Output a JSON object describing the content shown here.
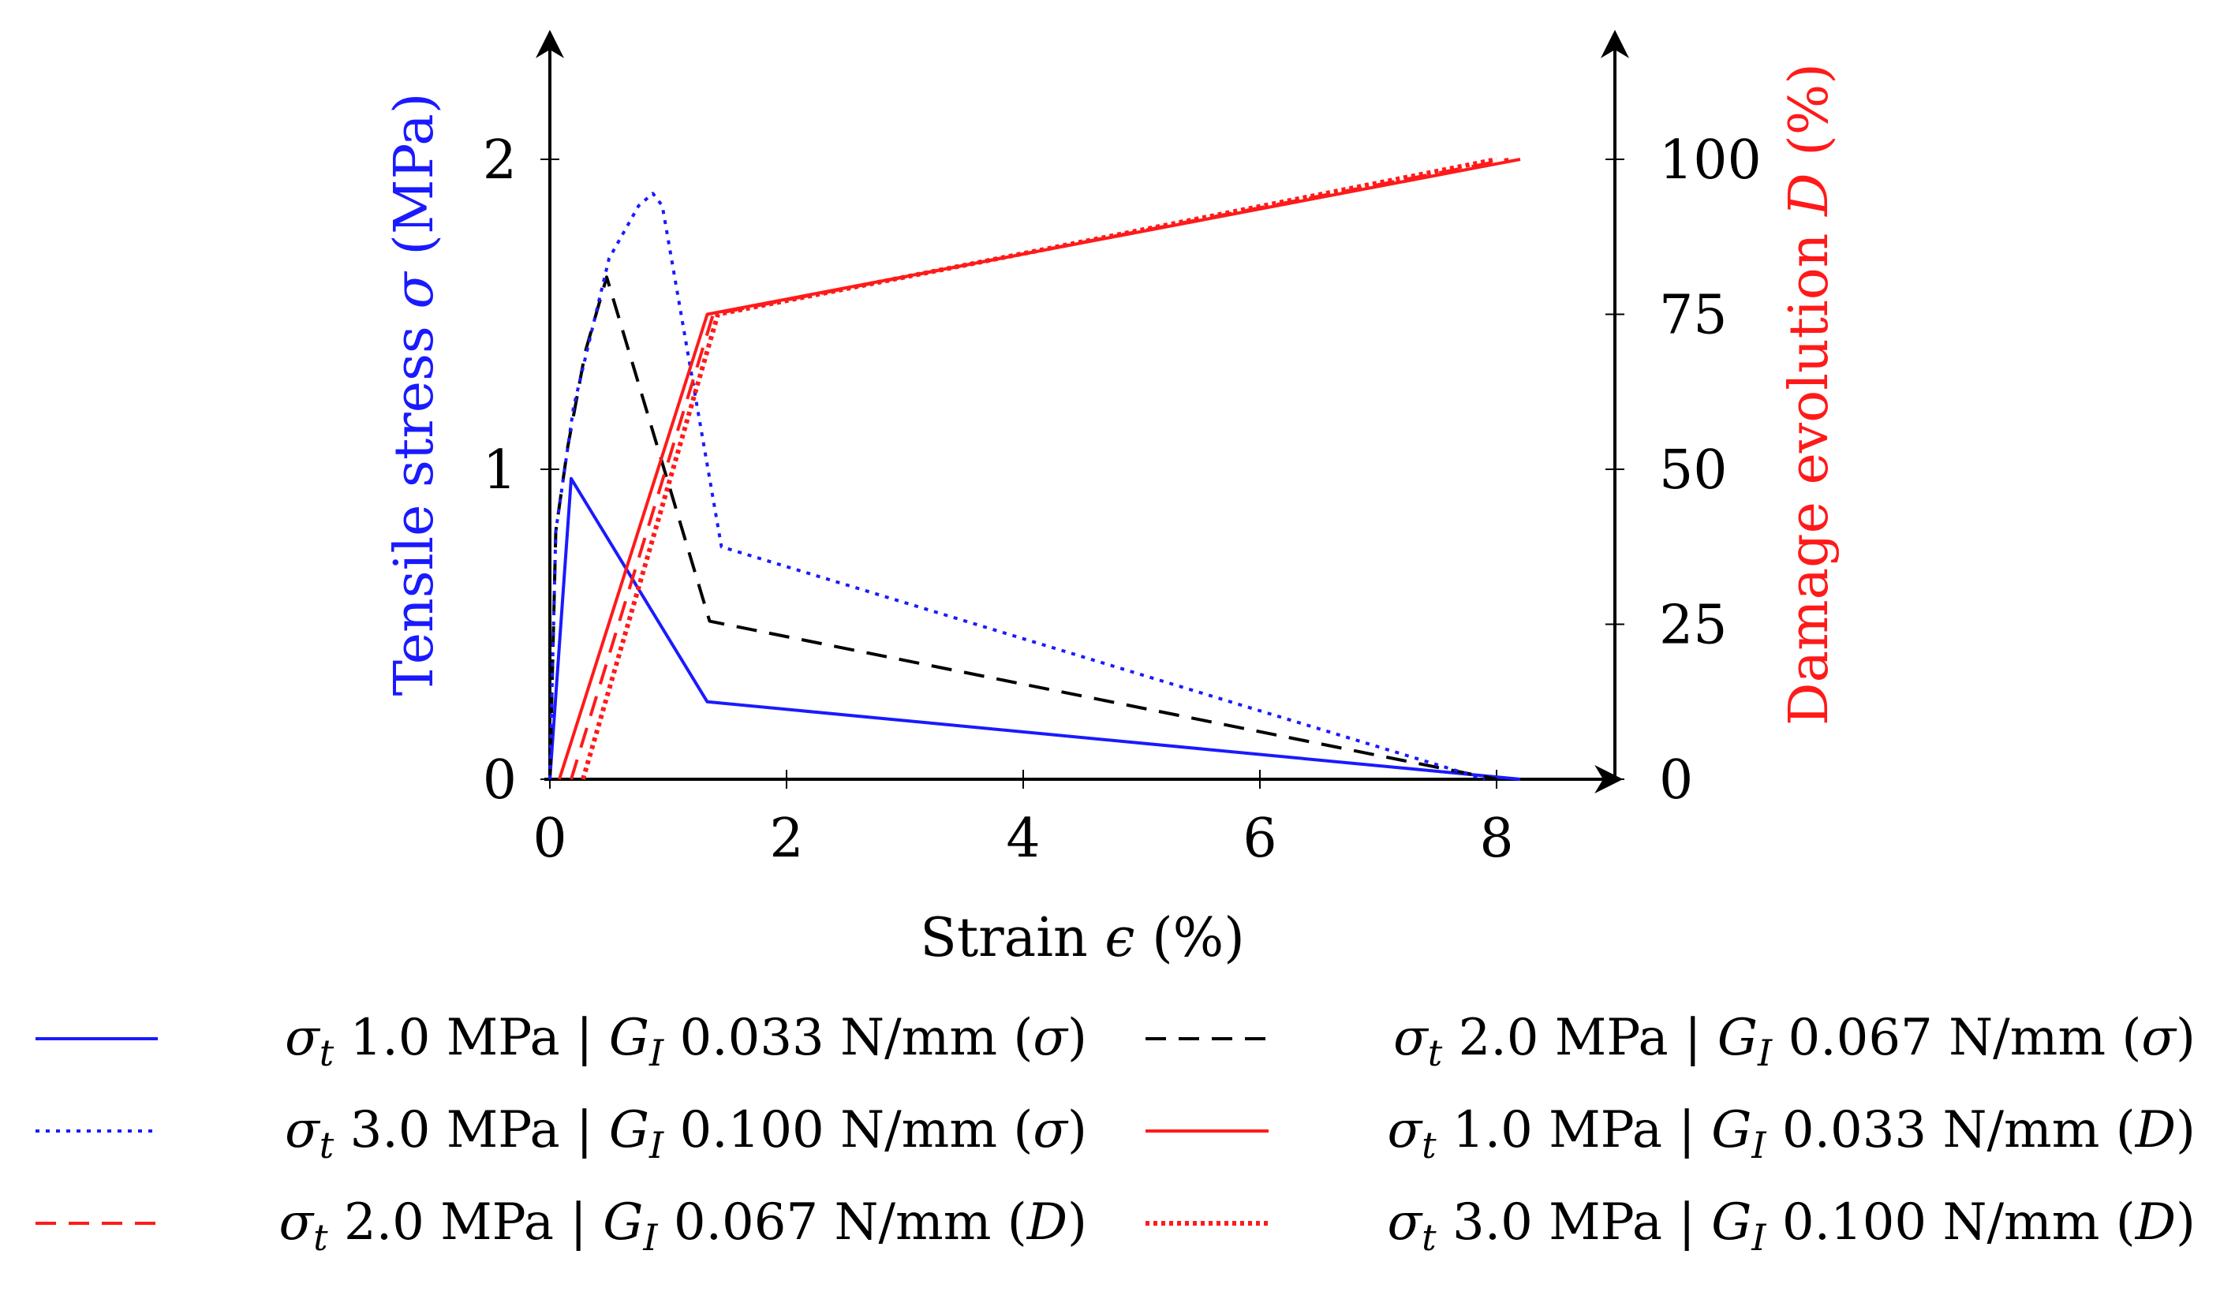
{
  "chart_data": {
    "type": "line",
    "xlabel": "Strain ϵ (%)",
    "ylabel_left": "Tensile stress σ (MPa)",
    "ylabel_right": "Damage evolution D (%)",
    "xlim": [
      -0.1,
      9.0
    ],
    "ylim_left": [
      0,
      2.4
    ],
    "ylim_right": [
      0,
      120
    ],
    "x_ticks": [
      "0",
      "2",
      "4",
      "6",
      "8"
    ],
    "y_left_ticks": [
      "0",
      "1",
      "2"
    ],
    "y_right_ticks": [
      "0",
      "25",
      "50",
      "75",
      "100"
    ],
    "colors": {
      "blue": "#1a1aff",
      "black": "#000000",
      "red": "#ff1a1a",
      "left_axis_title": "#1a1aff",
      "right_axis_title": "#ff1a1a"
    },
    "series": [
      {
        "name": "σt 1.0 MPa | GI 0.033 N/mm (σ)",
        "axis": "left",
        "color": "blue",
        "dash": "solid",
        "points": [
          [
            0,
            0
          ],
          [
            0.18,
            0.97
          ],
          [
            1.33,
            0.25
          ],
          [
            8.2,
            0.0
          ]
        ]
      },
      {
        "name": "σt 2.0 MPa | GI 0.067 N/mm (σ)",
        "axis": "left",
        "color": "black",
        "dash": "dashed",
        "points": [
          [
            0,
            0
          ],
          [
            0.05,
            0.8
          ],
          [
            0.15,
            1.07
          ],
          [
            0.3,
            1.38
          ],
          [
            0.48,
            1.62
          ],
          [
            1.35,
            0.51
          ],
          [
            8.0,
            0.0
          ]
        ]
      },
      {
        "name": "σt 3.0 MPa | GI 0.100 N/mm (σ)",
        "axis": "left",
        "color": "blue",
        "dash": "dotted",
        "points": [
          [
            0,
            0
          ],
          [
            0.05,
            0.8
          ],
          [
            0.2,
            1.2
          ],
          [
            0.5,
            1.68
          ],
          [
            0.75,
            1.85
          ],
          [
            0.87,
            1.89
          ],
          [
            0.95,
            1.85
          ],
          [
            1.45,
            0.75
          ],
          [
            7.9,
            0.0
          ]
        ]
      },
      {
        "name": "σt 1.0 MPa | GI 0.033 N/mm (D)",
        "axis": "right",
        "color": "red",
        "dash": "solid",
        "points": [
          [
            0.08,
            0
          ],
          [
            1.33,
            75
          ],
          [
            8.2,
            100
          ]
        ]
      },
      {
        "name": "σt 2.0 MPa | GI 0.067 N/mm (D)",
        "axis": "right",
        "color": "red",
        "dash": "dashed",
        "points": [
          [
            0.18,
            0
          ],
          [
            1.38,
            75
          ],
          [
            8.1,
            100
          ]
        ]
      },
      {
        "name": "σt 3.0 MPa | GI 0.100 N/mm (D)",
        "axis": "right",
        "color": "red",
        "dash": "dotted",
        "points": [
          [
            0.28,
            0
          ],
          [
            1.42,
            75
          ],
          [
            8.0,
            100
          ]
        ]
      }
    ],
    "legend": [
      {
        "sym": "σ",
        "sub": "t",
        "mid": " 1.0 MPa | ",
        "g": "G",
        "gsub": "I",
        "tail": " 0.033 N/mm (",
        "var": "σ",
        "close": ")"
      },
      {
        "sym": "σ",
        "sub": "t",
        "mid": " 2.0 MPa | ",
        "g": "G",
        "gsub": "I",
        "tail": " 0.067 N/mm (",
        "var": "σ",
        "close": ")"
      },
      {
        "sym": "σ",
        "sub": "t",
        "mid": " 3.0 MPa | ",
        "g": "G",
        "gsub": "I",
        "tail": " 0.100 N/mm (",
        "var": "σ",
        "close": ")"
      },
      {
        "sym": "σ",
        "sub": "t",
        "mid": " 1.0 MPa | ",
        "g": "G",
        "gsub": "I",
        "tail": " 0.033 N/mm (",
        "var": "D",
        "close": ")"
      },
      {
        "sym": "σ",
        "sub": "t",
        "mid": " 2.0 MPa | ",
        "g": "G",
        "gsub": "I",
        "tail": " 0.067 N/mm (",
        "var": "D",
        "close": ")"
      },
      {
        "sym": "σ",
        "sub": "t",
        "mid": " 3.0 MPa | ",
        "g": "G",
        "gsub": "I",
        "tail": " 0.100 N/mm (",
        "var": "D",
        "close": ")"
      }
    ]
  },
  "axis_titles": {
    "x_pre": "Strain ",
    "x_var": "ϵ",
    "x_post": " (%)",
    "left_pre": "Tensile stress ",
    "left_var": "σ",
    "left_post": " (MPa)",
    "right_pre": "Damage evolution ",
    "right_var": "D",
    "right_post": " (%)"
  }
}
